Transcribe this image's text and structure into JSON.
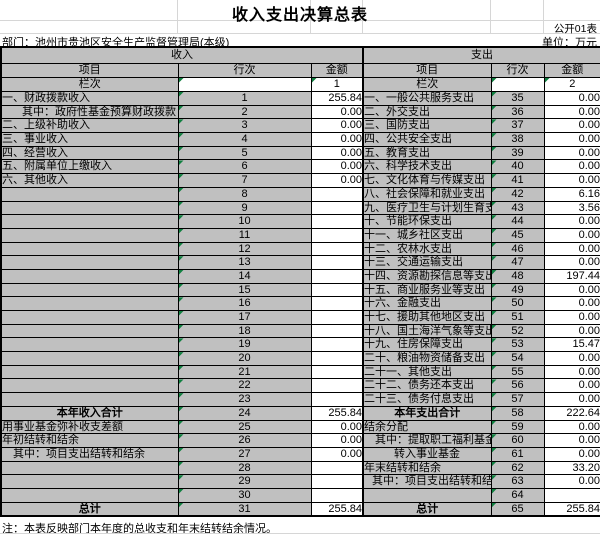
{
  "title": "收入支出决算总表",
  "doc_label": "公开01表",
  "department": "部门：池州市贵池区安全生产监督管理局(本级)",
  "unit_label": "单位：万元",
  "note": "注：本表反映部门本年度的总收支和年末结转结余情况。",
  "colors": {
    "cell_gray": "#c0c0c0",
    "border_black": "#000000",
    "faint_gridline": "#d6d6d6",
    "triangle_green": "#108040",
    "background": "#ffffff"
  },
  "headers": {
    "income": "收入",
    "expense": "支出",
    "item": "项目",
    "line_no": "行次",
    "amount": "金额",
    "lanci": "栏次",
    "income_col_index": "1",
    "expense_col_index": "2"
  },
  "rows": [
    {
      "l": {
        "t": "一、财政拨款收入",
        "n": "1",
        "a": "255.84"
      },
      "r": {
        "t": "一、一般公共服务支出",
        "n": "35",
        "a": "0.00"
      }
    },
    {
      "l": {
        "t": "其中：政府性基金预算财政拨款",
        "ind": 18,
        "n": "2",
        "a": "0.00"
      },
      "r": {
        "t": "二、外交支出",
        "n": "36",
        "a": "0.00"
      }
    },
    {
      "l": {
        "t": "二、上级补助收入",
        "n": "3",
        "a": "0.00"
      },
      "r": {
        "t": "三、国防支出",
        "n": "37",
        "a": "0.00"
      }
    },
    {
      "l": {
        "t": "三、事业收入",
        "n": "4",
        "a": "0.00"
      },
      "r": {
        "t": "四、公共安全支出",
        "n": "38",
        "a": "0.00"
      }
    },
    {
      "l": {
        "t": "四、经营收入",
        "n": "5",
        "a": "0.00"
      },
      "r": {
        "t": "五、教育支出",
        "n": "39",
        "a": "0.00"
      }
    },
    {
      "l": {
        "t": "五、附属单位上缴收入",
        "n": "6",
        "a": "0.00"
      },
      "r": {
        "t": "六、科学技术支出",
        "n": "40",
        "a": "0.00"
      }
    },
    {
      "l": {
        "t": "六、其他收入",
        "n": "7",
        "a": "0.00"
      },
      "r": {
        "t": "七、文化体育与传媒支出",
        "n": "41",
        "a": "0.00"
      }
    },
    {
      "l": {
        "t": "",
        "n": "8",
        "a": ""
      },
      "r": {
        "t": "八、社会保障和就业支出",
        "n": "42",
        "a": "6.16"
      }
    },
    {
      "l": {
        "t": "",
        "n": "9",
        "a": ""
      },
      "r": {
        "t": "九、医疗卫生与计划生育支出",
        "sm": 1,
        "n": "43",
        "a": "3.56"
      }
    },
    {
      "l": {
        "t": "",
        "n": "10",
        "a": ""
      },
      "r": {
        "t": "十、节能环保支出",
        "n": "44",
        "a": "0.00"
      }
    },
    {
      "l": {
        "t": "",
        "n": "11",
        "a": ""
      },
      "r": {
        "t": "十一、城乡社区支出",
        "n": "45",
        "a": "0.00"
      }
    },
    {
      "l": {
        "t": "",
        "n": "12",
        "a": ""
      },
      "r": {
        "t": "十二、农林水支出",
        "n": "46",
        "a": "0.00"
      }
    },
    {
      "l": {
        "t": "",
        "n": "13",
        "a": ""
      },
      "r": {
        "t": "十三、交通运输支出",
        "n": "47",
        "a": "0.00"
      }
    },
    {
      "l": {
        "t": "",
        "n": "14",
        "a": ""
      },
      "r": {
        "t": "十四、资源勘探信息等支出",
        "sm": 1,
        "n": "48",
        "a": "197.44"
      }
    },
    {
      "l": {
        "t": "",
        "n": "15",
        "a": ""
      },
      "r": {
        "t": "十五、商业服务业等支出",
        "n": "49",
        "a": "0.00"
      }
    },
    {
      "l": {
        "t": "",
        "n": "16",
        "a": ""
      },
      "r": {
        "t": "十六、金融支出",
        "n": "50",
        "a": "0.00"
      }
    },
    {
      "l": {
        "t": "",
        "n": "17",
        "a": ""
      },
      "r": {
        "t": "十七、援助其他地区支出",
        "n": "51",
        "a": "0.00"
      }
    },
    {
      "l": {
        "t": "",
        "n": "18",
        "a": ""
      },
      "r": {
        "t": "十八、国土海洋气象等支出",
        "sm": 1,
        "n": "52",
        "a": "0.00"
      }
    },
    {
      "l": {
        "t": "",
        "n": "19",
        "a": ""
      },
      "r": {
        "t": "十九、住房保障支出",
        "n": "53",
        "a": "15.47"
      }
    },
    {
      "l": {
        "t": "",
        "n": "20",
        "a": ""
      },
      "r": {
        "t": "二十、粮油物资储备支出",
        "n": "54",
        "a": "0.00"
      }
    },
    {
      "l": {
        "t": "",
        "n": "21",
        "a": ""
      },
      "r": {
        "t": "二十一、其他支出",
        "n": "55",
        "a": "0.00"
      }
    },
    {
      "l": {
        "t": "",
        "n": "22",
        "a": ""
      },
      "r": {
        "t": "二十二、债务还本支出",
        "n": "56",
        "a": "0.00"
      }
    },
    {
      "l": {
        "t": "",
        "n": "23",
        "a": ""
      },
      "r": {
        "t": "二十三、债务付息支出",
        "n": "57",
        "a": "0.00"
      }
    },
    {
      "l": {
        "t": "本年收入合计",
        "b": 1,
        "n": "24",
        "a": "255.84"
      },
      "r": {
        "t": "本年支出合计",
        "b": 1,
        "n": "58",
        "a": "222.64"
      }
    },
    {
      "l": {
        "t": "用事业基金弥补收支差额",
        "n": "25",
        "a": "0.00"
      },
      "r": {
        "t": "结余分配",
        "n": "59",
        "a": "0.00"
      }
    },
    {
      "l": {
        "t": "年初结转和结余",
        "n": "26",
        "a": "0.00"
      },
      "r": {
        "t": "其中：提取职工福利基金",
        "ind": 9,
        "n": "60",
        "a": "0.00"
      }
    },
    {
      "l": {
        "t": "其中：项目支出结转和结余",
        "ind": 9,
        "n": "27",
        "a": "0.00"
      },
      "r": {
        "t": "转入事业基金",
        "ind": 28,
        "n": "61",
        "a": "0.00"
      }
    },
    {
      "l": {
        "t": "",
        "n": "28",
        "a": ""
      },
      "r": {
        "t": "年末结转和结余",
        "n": "62",
        "a": "33.20"
      }
    },
    {
      "l": {
        "t": "",
        "n": "29",
        "a": ""
      },
      "r": {
        "t": "其中：项目支出结转和结余",
        "ind": 6,
        "sm": 1,
        "n": "63",
        "a": "0.00"
      }
    },
    {
      "l": {
        "t": "",
        "n": "30",
        "a": ""
      },
      "r": {
        "t": "",
        "n": "64",
        "a": ""
      }
    },
    {
      "l": {
        "t": "总计",
        "b": 1,
        "n": "31",
        "a": "255.84"
      },
      "r": {
        "t": "总计",
        "b": 1,
        "n": "65",
        "a": "255.84"
      }
    }
  ]
}
